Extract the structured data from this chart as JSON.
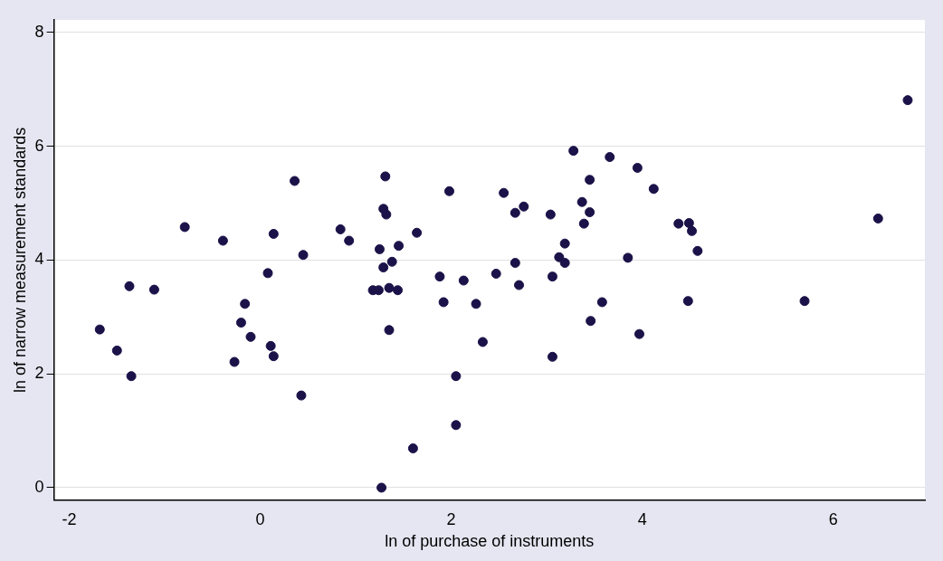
{
  "chart_data": {
    "type": "scatter",
    "xlabel": "ln of purchase of instruments",
    "ylabel": "ln of narrow measurement standards",
    "x": [
      -1.68,
      -1.5,
      -1.37,
      -1.35,
      -1.11,
      -0.79,
      -0.39,
      -0.27,
      -0.2,
      -0.16,
      -0.1,
      0.08,
      0.11,
      0.14,
      0.14,
      0.36,
      0.45,
      0.43,
      0.84,
      0.93,
      1.18,
      1.24,
      1.25,
      1.29,
      1.31,
      1.29,
      1.32,
      1.38,
      1.35,
      1.44,
      1.45,
      1.35,
      1.27,
      1.64,
      1.6,
      1.88,
      1.92,
      1.98,
      2.05,
      2.05,
      2.13,
      2.26,
      2.33,
      2.47,
      2.55,
      2.67,
      2.67,
      2.76,
      2.71,
      3.04,
      3.06,
      3.06,
      3.13,
      3.19,
      3.19,
      3.28,
      3.37,
      3.45,
      3.45,
      3.39,
      3.46,
      3.58,
      3.66,
      3.85,
      3.95,
      3.97,
      4.12,
      4.38,
      4.49,
      4.52,
      4.58,
      4.48,
      5.7,
      6.47,
      6.78
    ],
    "values": [
      2.78,
      2.41,
      3.54,
      1.96,
      3.48,
      4.58,
      4.34,
      2.21,
      2.9,
      3.23,
      2.65,
      3.77,
      2.49,
      2.31,
      4.46,
      5.39,
      4.09,
      1.62,
      4.54,
      4.34,
      3.47,
      3.47,
      4.19,
      3.87,
      5.47,
      4.9,
      4.8,
      3.97,
      3.51,
      3.47,
      4.25,
      2.77,
      0.0,
      4.48,
      0.69,
      3.71,
      3.26,
      5.21,
      1.96,
      1.1,
      3.64,
      3.23,
      2.56,
      3.76,
      5.18,
      3.95,
      4.83,
      4.94,
      3.56,
      4.8,
      3.71,
      2.3,
      4.05,
      4.29,
      3.95,
      5.92,
      5.02,
      5.41,
      4.84,
      4.64,
      2.93,
      3.26,
      5.81,
      4.04,
      5.62,
      2.7,
      5.25,
      4.64,
      4.65,
      4.51,
      4.16,
      3.28,
      3.28,
      4.73,
      6.81
    ],
    "color": "#1a1248",
    "marker": "circle",
    "xlim": [
      -2.16,
      6.96
    ],
    "xticks": [
      -2,
      0,
      2,
      4,
      6
    ],
    "ylim": [
      -0.22,
      8.22
    ],
    "yticks": [
      0,
      2,
      4,
      6,
      8
    ],
    "grid": "y",
    "legend": false
  }
}
